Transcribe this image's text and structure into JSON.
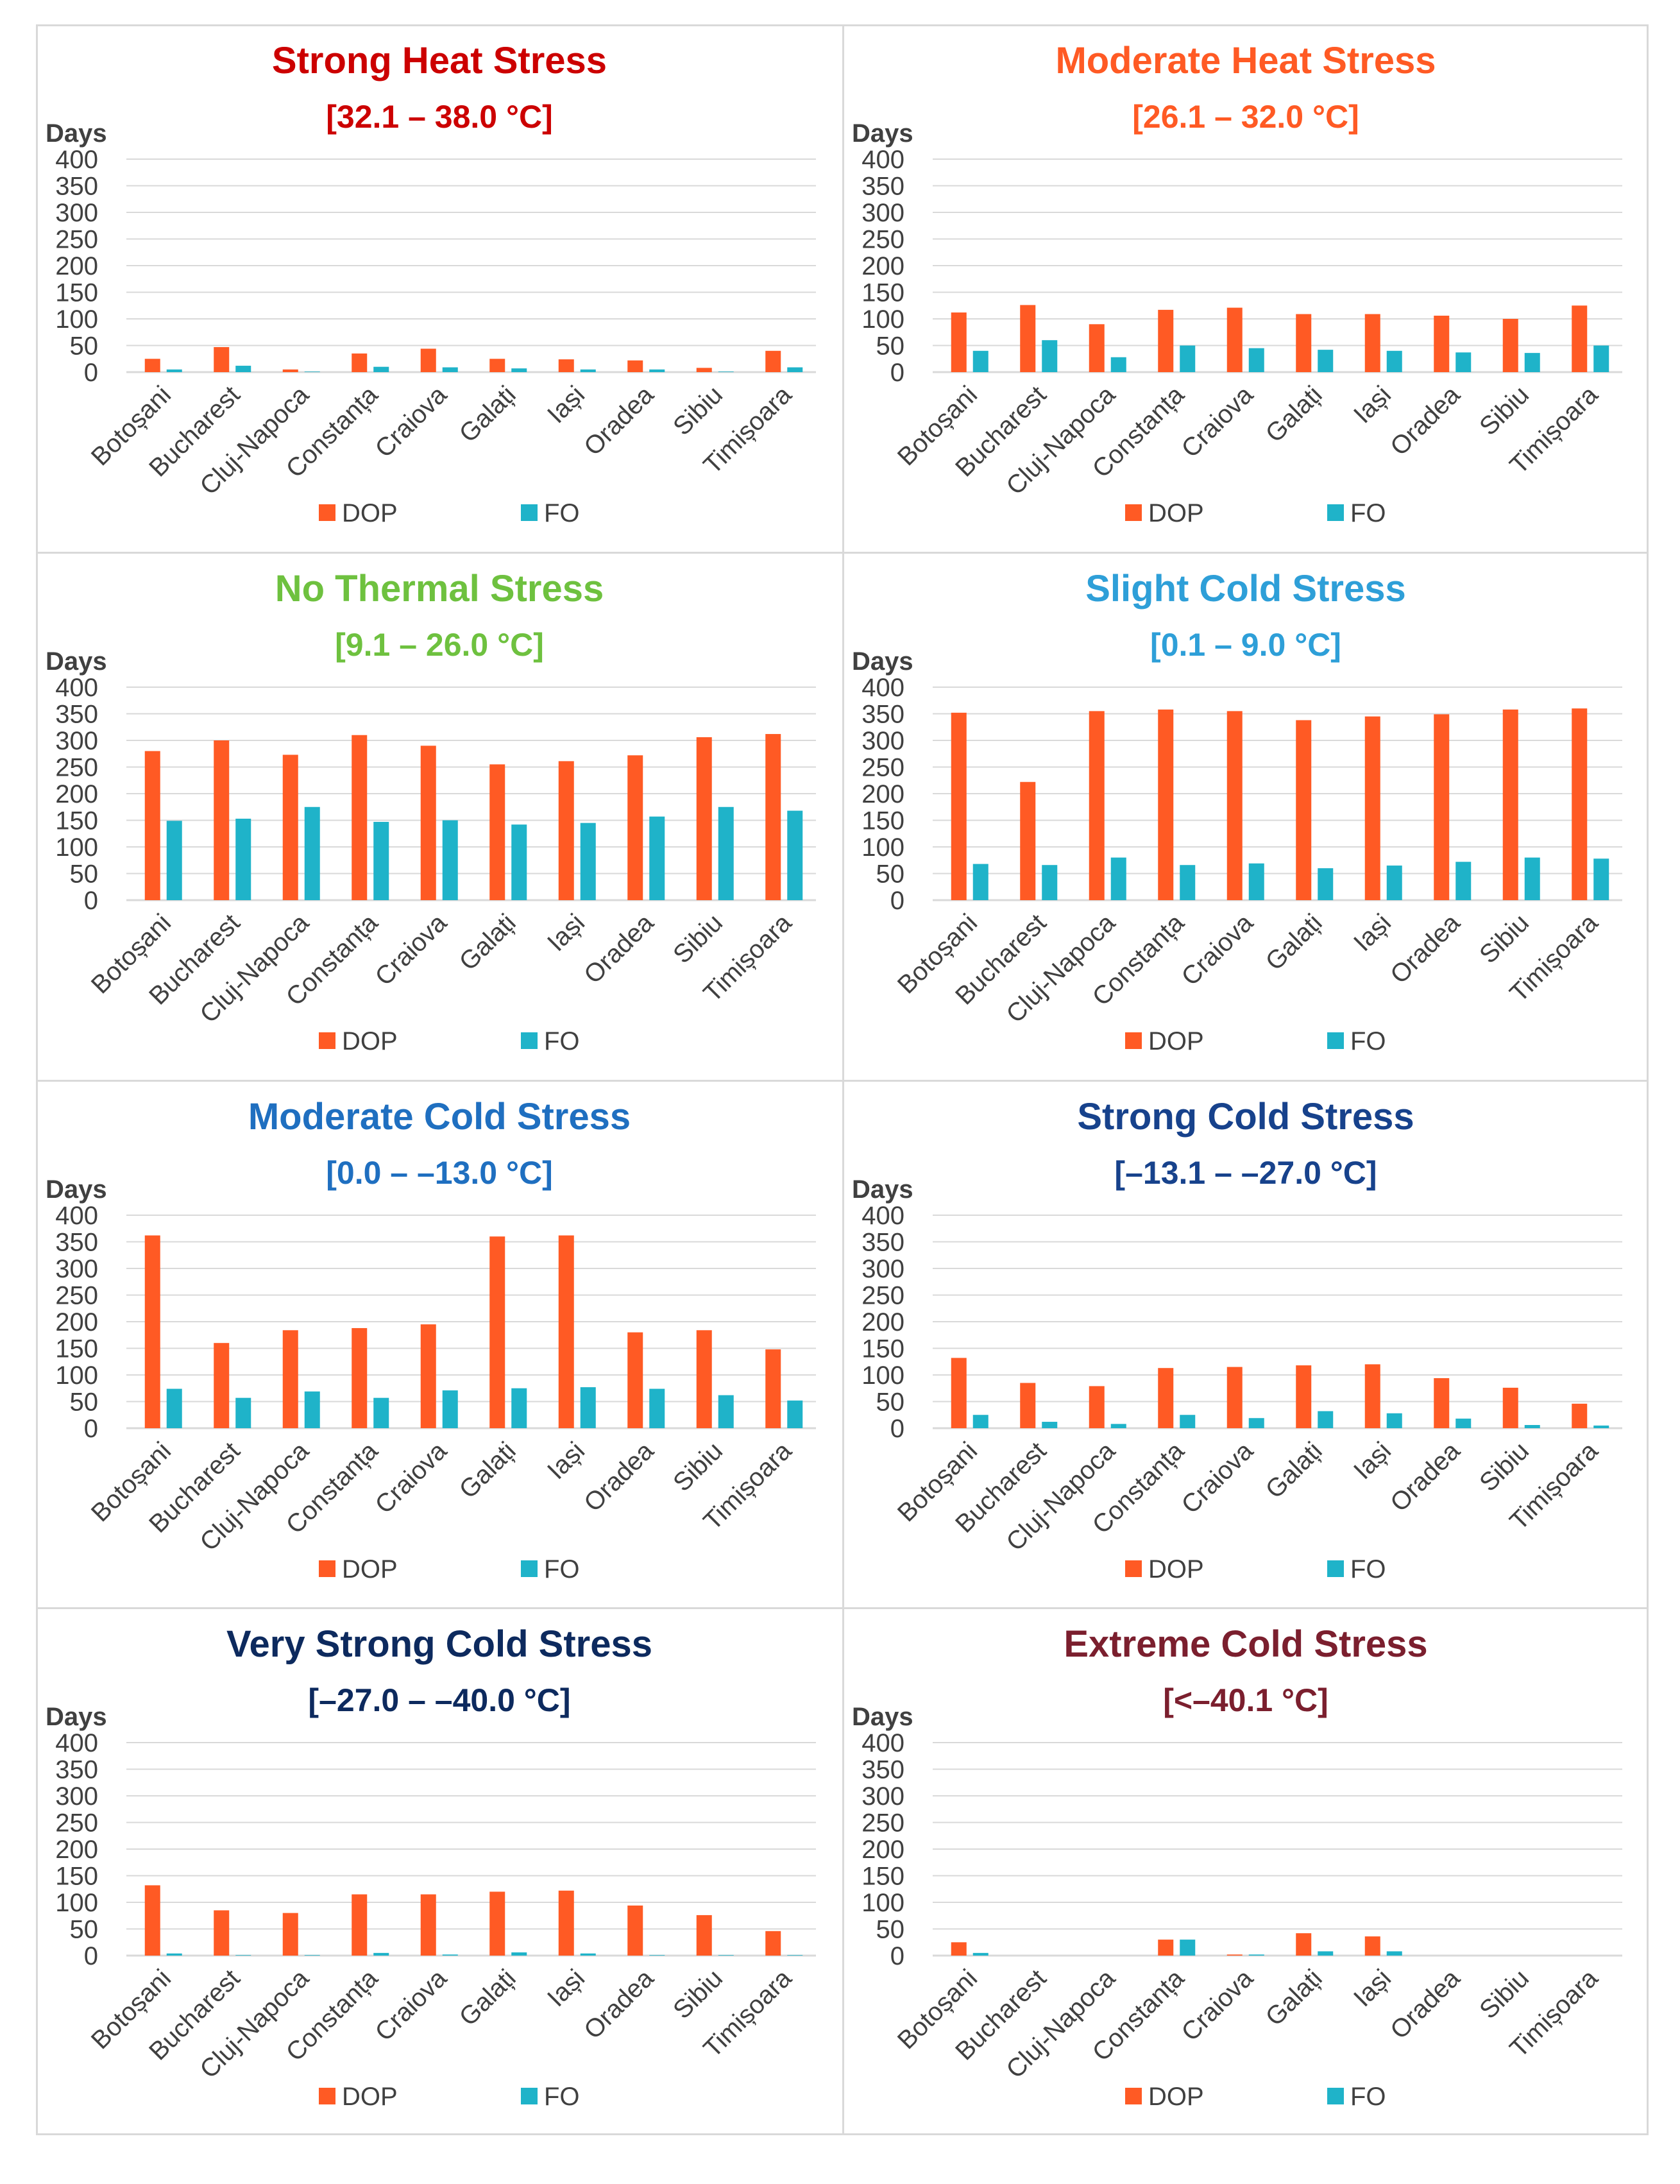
{
  "colors": {
    "dop": "#ff5a24",
    "fo": "#1fb3c9",
    "grid": "#d9d9d9",
    "axis_text": "#404040"
  },
  "chart_data": [
    {
      "type": "bar",
      "title": "Strong Heat Stress",
      "subtitle": "[32.1 – 38.0 °C]",
      "title_color": "#cc0000",
      "ylabel": "Days",
      "ylim": [
        0,
        400
      ],
      "yticks": [
        "400",
        "350",
        "300",
        "250",
        "200",
        "150",
        "100",
        "50",
        "0"
      ],
      "categories": [
        "Botoșani",
        "Bucharest",
        "Cluj-Napoca",
        "Constanța",
        "Craiova",
        "Galați",
        "Iași",
        "Oradea",
        "Sibiu",
        "Timișoara"
      ],
      "series": [
        {
          "name": "DOP",
          "values": [
            25,
            47,
            5,
            35,
            44,
            25,
            24,
            22,
            8,
            40
          ]
        },
        {
          "name": "FO",
          "values": [
            5,
            12,
            1,
            10,
            9,
            7,
            5,
            5,
            1,
            9
          ]
        }
      ],
      "legend": "bottom"
    },
    {
      "type": "bar",
      "title": "Moderate Heat Stress",
      "subtitle": "[26.1 – 32.0 °C]",
      "title_color": "#ff5a24",
      "ylabel": "Days",
      "ylim": [
        0,
        400
      ],
      "yticks": [
        "400",
        "350",
        "300",
        "250",
        "200",
        "150",
        "100",
        "50",
        "0"
      ],
      "categories": [
        "Botoșani",
        "Bucharest",
        "Cluj-Napoca",
        "Constanța",
        "Craiova",
        "Galați",
        "Iași",
        "Oradea",
        "Sibiu",
        "Timișoara"
      ],
      "series": [
        {
          "name": "DOP",
          "values": [
            112,
            126,
            90,
            117,
            121,
            109,
            109,
            106,
            100,
            125
          ]
        },
        {
          "name": "FO",
          "values": [
            40,
            60,
            28,
            50,
            45,
            42,
            40,
            37,
            36,
            50
          ]
        }
      ],
      "legend": "bottom"
    },
    {
      "type": "bar",
      "title": "No Thermal Stress",
      "subtitle": "[9.1 – 26.0 °C]",
      "title_color": "#6ec13f",
      "ylabel": "Days",
      "ylim": [
        0,
        400
      ],
      "yticks": [
        "400",
        "350",
        "300",
        "250",
        "200",
        "150",
        "100",
        "50",
        "0"
      ],
      "categories": [
        "Botoșani",
        "Bucharest",
        "Cluj-Napoca",
        "Constanța",
        "Craiova",
        "Galați",
        "Iași",
        "Oradea",
        "Sibiu",
        "Timișoara"
      ],
      "series": [
        {
          "name": "DOP",
          "values": [
            280,
            300,
            273,
            310,
            290,
            255,
            261,
            272,
            306,
            312
          ]
        },
        {
          "name": "FO",
          "values": [
            149,
            153,
            175,
            147,
            150,
            142,
            145,
            157,
            175,
            168
          ]
        }
      ],
      "legend": "bottom"
    },
    {
      "type": "bar",
      "title": "Slight Cold Stress",
      "subtitle": "[0.1 – 9.0 °C]",
      "title_color": "#2e9fd8",
      "ylabel": "Days",
      "ylim": [
        0,
        400
      ],
      "yticks": [
        "400",
        "350",
        "300",
        "250",
        "200",
        "150",
        "100",
        "50",
        "0"
      ],
      "categories": [
        "Botoșani",
        "Bucharest",
        "Cluj-Napoca",
        "Constanța",
        "Craiova",
        "Galați",
        "Iași",
        "Oradea",
        "Sibiu",
        "Timișoara"
      ],
      "series": [
        {
          "name": "DOP",
          "values": [
            352,
            222,
            355,
            358,
            355,
            338,
            345,
            349,
            358,
            360
          ]
        },
        {
          "name": "FO",
          "values": [
            68,
            66,
            80,
            66,
            69,
            60,
            65,
            72,
            80,
            78
          ]
        }
      ],
      "legend": "bottom"
    },
    {
      "type": "bar",
      "title": "Moderate Cold Stress",
      "subtitle": "[0.0 – –13.0 °C]",
      "title_color": "#1f6fc0",
      "ylabel": "Days",
      "ylim": [
        0,
        400
      ],
      "yticks": [
        "400",
        "350",
        "300",
        "250",
        "200",
        "150",
        "100",
        "50",
        "0"
      ],
      "categories": [
        "Botoșani",
        "Bucharest",
        "Cluj-Napoca",
        "Constanța",
        "Craiova",
        "Galați",
        "Iași",
        "Oradea",
        "Sibiu",
        "Timișoara"
      ],
      "series": [
        {
          "name": "DOP",
          "values": [
            362,
            160,
            184,
            188,
            195,
            360,
            362,
            180,
            184,
            148
          ]
        },
        {
          "name": "FO",
          "values": [
            74,
            57,
            69,
            57,
            71,
            75,
            77,
            74,
            62,
            52
          ]
        }
      ],
      "legend": "bottom"
    },
    {
      "type": "bar",
      "title": "Strong Cold Stress",
      "subtitle": "[–13.1 – –27.0 °C]",
      "title_color": "#17428c",
      "ylabel": "Days",
      "ylim": [
        0,
        400
      ],
      "yticks": [
        "400",
        "350",
        "300",
        "250",
        "200",
        "150",
        "100",
        "50",
        "0"
      ],
      "categories": [
        "Botoșani",
        "Bucharest",
        "Cluj-Napoca",
        "Constanța",
        "Craiova",
        "Galați",
        "Iași",
        "Oradea",
        "Sibiu",
        "Timișoara"
      ],
      "series": [
        {
          "name": "DOP",
          "values": [
            132,
            85,
            79,
            113,
            115,
            118,
            120,
            94,
            76,
            46
          ]
        },
        {
          "name": "FO",
          "values": [
            25,
            12,
            8,
            25,
            19,
            32,
            28,
            18,
            6,
            5
          ]
        }
      ],
      "legend": "bottom"
    },
    {
      "type": "bar",
      "title": "Very Strong Cold Stress",
      "subtitle": "[–27.0 – –40.0 °C]",
      "title_color": "#0d2a5e",
      "ylabel": "Days",
      "ylim": [
        0,
        400
      ],
      "yticks": [
        "400",
        "350",
        "300",
        "250",
        "200",
        "150",
        "100",
        "50",
        "0"
      ],
      "categories": [
        "Botoșani",
        "Bucharest",
        "Cluj-Napoca",
        "Constanța",
        "Craiova",
        "Galați",
        "Iași",
        "Oradea",
        "Sibiu",
        "Timișoara"
      ],
      "series": [
        {
          "name": "DOP",
          "values": [
            132,
            85,
            80,
            115,
            115,
            120,
            122,
            94,
            76,
            46
          ]
        },
        {
          "name": "FO",
          "values": [
            4,
            1,
            1,
            5,
            2,
            6,
            4,
            1,
            1,
            1
          ]
        }
      ],
      "legend": "bottom"
    },
    {
      "type": "bar",
      "title": "Extreme Cold Stress",
      "subtitle": "[<–40.1 °C]",
      "title_color": "#7b1f2e",
      "ylabel": "Days",
      "ylim": [
        0,
        400
      ],
      "yticks": [
        "400",
        "350",
        "300",
        "250",
        "200",
        "150",
        "100",
        "50",
        "0"
      ],
      "categories": [
        "Botoșani",
        "Bucharest",
        "Cluj-Napoca",
        "Constanța",
        "Craiova",
        "Galați",
        "Iași",
        "Oradea",
        "Sibiu",
        "Timișoara"
      ],
      "series": [
        {
          "name": "DOP",
          "values": [
            25,
            0,
            0,
            30,
            2,
            42,
            36,
            0,
            0,
            0
          ]
        },
        {
          "name": "FO",
          "values": [
            5,
            0,
            0,
            30,
            2,
            8,
            8,
            0,
            0,
            0
          ]
        }
      ],
      "legend": "bottom"
    }
  ]
}
